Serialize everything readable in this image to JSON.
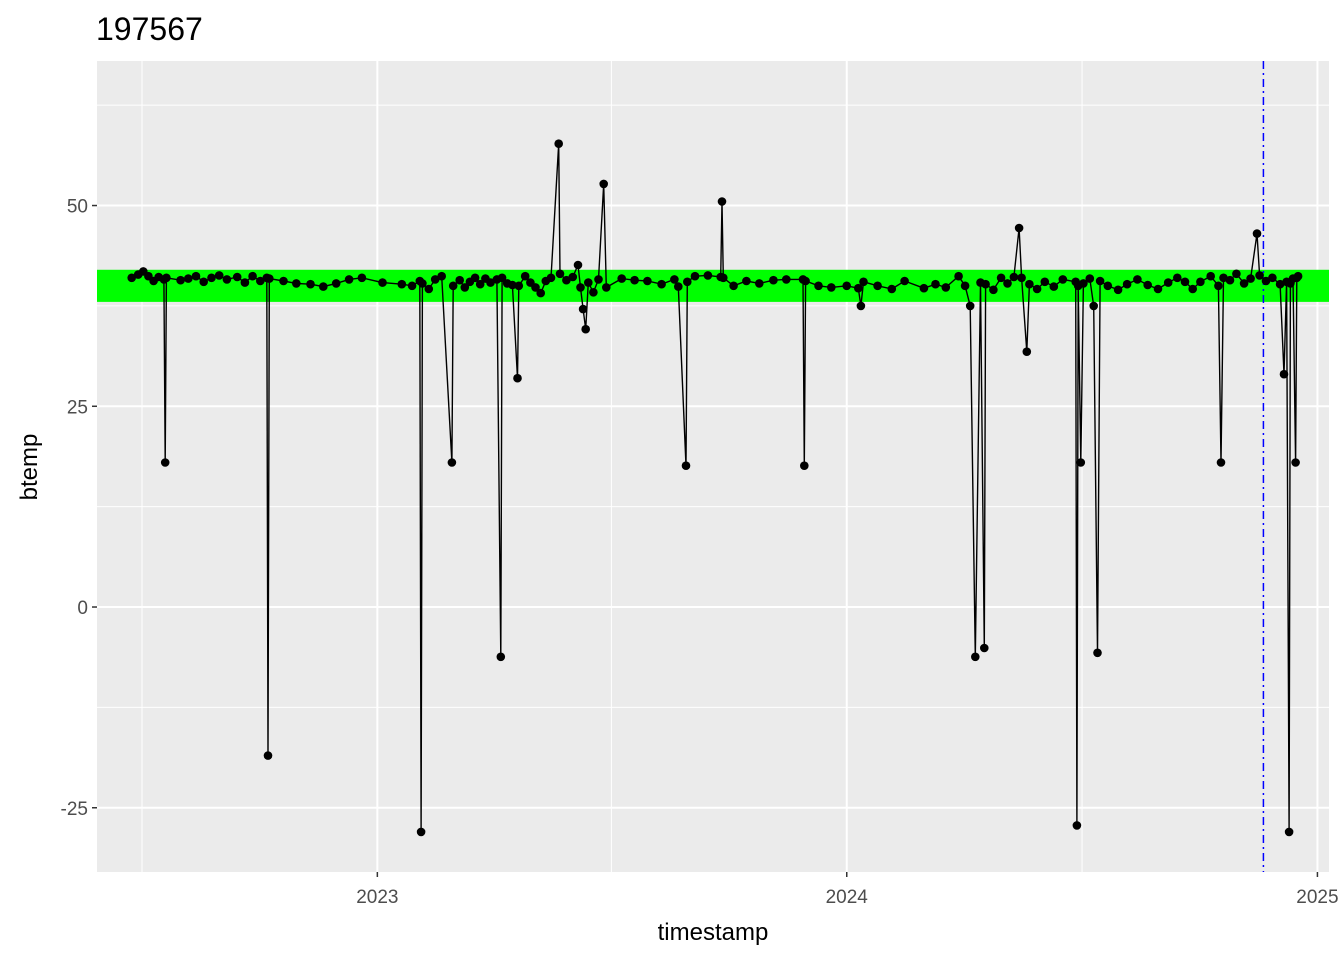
{
  "chart_data": {
    "type": "line",
    "title": "197567",
    "xlabel": "timestamp",
    "ylabel": "btemp",
    "x_tick_labels": [
      "2023",
      "2024",
      "2025"
    ],
    "y_tick_labels": [
      "-25",
      "0",
      "25",
      "50"
    ],
    "xlim": [
      "2022-05-28",
      "2025-01-10"
    ],
    "ylim": [
      -33,
      68
    ],
    "band": {
      "from": 38,
      "to": 42,
      "color": "#00ff00"
    },
    "reference_line": {
      "x": "2024-11-20",
      "color": "#0000ff",
      "style": "dot-dash"
    },
    "series": [
      {
        "color": "#000000",
        "markers": true,
        "points": [
          [
            "2022-06-24",
            41.0
          ],
          [
            "2022-06-29",
            41.4
          ],
          [
            "2022-07-03",
            41.8
          ],
          [
            "2022-07-07",
            41.2
          ],
          [
            "2022-07-11",
            40.6
          ],
          [
            "2022-07-15",
            41.1
          ],
          [
            "2022-07-19",
            40.8
          ],
          [
            "2022-07-20",
            18.0
          ],
          [
            "2022-07-21",
            41.0
          ],
          [
            "2022-08-01",
            40.7
          ],
          [
            "2022-08-07",
            40.9
          ],
          [
            "2022-08-13",
            41.2
          ],
          [
            "2022-08-19",
            40.5
          ],
          [
            "2022-08-25",
            41.0
          ],
          [
            "2022-08-31",
            41.3
          ],
          [
            "2022-09-06",
            40.8
          ],
          [
            "2022-09-14",
            41.1
          ],
          [
            "2022-09-20",
            40.4
          ],
          [
            "2022-09-26",
            41.2
          ],
          [
            "2022-10-02",
            40.6
          ],
          [
            "2022-10-07",
            41.0
          ],
          [
            "2022-10-08",
            -18.5
          ],
          [
            "2022-10-09",
            40.9
          ],
          [
            "2022-10-20",
            40.6
          ],
          [
            "2022-10-30",
            40.3
          ],
          [
            "2022-11-10",
            40.2
          ],
          [
            "2022-11-20",
            39.9
          ],
          [
            "2022-11-30",
            40.3
          ],
          [
            "2022-12-10",
            40.8
          ],
          [
            "2022-12-20",
            41.0
          ],
          [
            "2023-01-05",
            40.4
          ],
          [
            "2023-01-20",
            40.2
          ],
          [
            "2023-01-28",
            40.0
          ],
          [
            "2023-02-03",
            40.6
          ],
          [
            "2023-02-04",
            -28.0
          ],
          [
            "2023-02-05",
            40.3
          ],
          [
            "2023-02-10",
            39.6
          ],
          [
            "2023-02-15",
            40.8
          ],
          [
            "2023-02-20",
            41.2
          ],
          [
            "2023-02-28",
            18.0
          ],
          [
            "2023-03-01",
            40.0
          ],
          [
            "2023-03-06",
            40.7
          ],
          [
            "2023-03-10",
            39.8
          ],
          [
            "2023-03-14",
            40.5
          ],
          [
            "2023-03-18",
            41.0
          ],
          [
            "2023-03-22",
            40.2
          ],
          [
            "2023-03-26",
            40.9
          ],
          [
            "2023-03-30",
            40.4
          ],
          [
            "2023-04-04",
            40.8
          ],
          [
            "2023-04-07",
            -6.2
          ],
          [
            "2023-04-08",
            41.0
          ],
          [
            "2023-04-12",
            40.3
          ],
          [
            "2023-04-16",
            40.1
          ],
          [
            "2023-04-20",
            28.5
          ],
          [
            "2023-04-21",
            40.0
          ],
          [
            "2023-04-26",
            41.2
          ],
          [
            "2023-04-30",
            40.4
          ],
          [
            "2023-05-04",
            39.8
          ],
          [
            "2023-05-08",
            39.1
          ],
          [
            "2023-05-12",
            40.6
          ],
          [
            "2023-05-16",
            41.0
          ],
          [
            "2023-05-22",
            57.7
          ],
          [
            "2023-05-23",
            41.5
          ],
          [
            "2023-05-28",
            40.7
          ],
          [
            "2023-06-02",
            41.1
          ],
          [
            "2023-06-06",
            42.6
          ],
          [
            "2023-06-08",
            39.8
          ],
          [
            "2023-06-10",
            37.1
          ],
          [
            "2023-06-12",
            34.6
          ],
          [
            "2023-06-14",
            40.4
          ],
          [
            "2023-06-18",
            39.2
          ],
          [
            "2023-06-22",
            40.8
          ],
          [
            "2023-06-26",
            52.7
          ],
          [
            "2023-06-28",
            39.8
          ],
          [
            "2023-07-10",
            40.9
          ],
          [
            "2023-07-20",
            40.7
          ],
          [
            "2023-07-30",
            40.6
          ],
          [
            "2023-08-10",
            40.2
          ],
          [
            "2023-08-20",
            40.8
          ],
          [
            "2023-08-23",
            39.9
          ],
          [
            "2023-08-29",
            17.6
          ],
          [
            "2023-08-30",
            40.5
          ],
          [
            "2023-09-05",
            41.2
          ],
          [
            "2023-09-15",
            41.3
          ],
          [
            "2023-09-25",
            41.1
          ],
          [
            "2023-09-26",
            50.5
          ],
          [
            "2023-09-27",
            41.0
          ],
          [
            "2023-10-05",
            40.0
          ],
          [
            "2023-10-15",
            40.6
          ],
          [
            "2023-10-25",
            40.3
          ],
          [
            "2023-11-05",
            40.7
          ],
          [
            "2023-11-15",
            40.8
          ],
          [
            "2023-11-28",
            40.8
          ],
          [
            "2023-11-29",
            17.6
          ],
          [
            "2023-11-30",
            40.6
          ],
          [
            "2023-12-10",
            40.0
          ],
          [
            "2023-12-20",
            39.8
          ],
          [
            "2024-01-01",
            40.0
          ],
          [
            "2024-01-10",
            39.7
          ],
          [
            "2024-01-12",
            37.5
          ],
          [
            "2024-01-14",
            40.5
          ],
          [
            "2024-01-25",
            40.0
          ],
          [
            "2024-02-05",
            39.6
          ],
          [
            "2024-02-15",
            40.6
          ],
          [
            "2024-03-01",
            39.7
          ],
          [
            "2024-03-10",
            40.2
          ],
          [
            "2024-03-18",
            39.8
          ],
          [
            "2024-03-28",
            41.2
          ],
          [
            "2024-04-02",
            40.0
          ],
          [
            "2024-04-06",
            37.5
          ],
          [
            "2024-04-10",
            -6.2
          ],
          [
            "2024-04-14",
            40.4
          ],
          [
            "2024-04-17",
            -5.1
          ],
          [
            "2024-04-18",
            40.2
          ],
          [
            "2024-04-24",
            39.5
          ],
          [
            "2024-04-30",
            41.0
          ],
          [
            "2024-05-05",
            40.3
          ],
          [
            "2024-05-10",
            41.1
          ],
          [
            "2024-05-14",
            47.2
          ],
          [
            "2024-05-16",
            41.0
          ],
          [
            "2024-05-20",
            31.8
          ],
          [
            "2024-05-22",
            40.2
          ],
          [
            "2024-05-28",
            39.6
          ],
          [
            "2024-06-03",
            40.5
          ],
          [
            "2024-06-10",
            39.9
          ],
          [
            "2024-06-17",
            40.8
          ],
          [
            "2024-06-27",
            40.5
          ],
          [
            "2024-06-28",
            -27.2
          ],
          [
            "2024-06-29",
            40.0
          ],
          [
            "2024-07-01",
            18.0
          ],
          [
            "2024-07-03",
            40.3
          ],
          [
            "2024-07-08",
            40.9
          ],
          [
            "2024-07-11",
            37.5
          ],
          [
            "2024-07-14",
            -5.7
          ],
          [
            "2024-07-16",
            40.6
          ],
          [
            "2024-07-22",
            40.0
          ],
          [
            "2024-07-30",
            39.5
          ],
          [
            "2024-08-06",
            40.2
          ],
          [
            "2024-08-14",
            40.8
          ],
          [
            "2024-08-22",
            40.1
          ],
          [
            "2024-08-30",
            39.6
          ],
          [
            "2024-09-07",
            40.4
          ],
          [
            "2024-09-14",
            41.0
          ],
          [
            "2024-09-20",
            40.5
          ],
          [
            "2024-09-26",
            39.6
          ],
          [
            "2024-10-02",
            40.5
          ],
          [
            "2024-10-10",
            41.2
          ],
          [
            "2024-10-16",
            40.0
          ],
          [
            "2024-10-18",
            18.0
          ],
          [
            "2024-10-20",
            41.0
          ],
          [
            "2024-10-25",
            40.7
          ],
          [
            "2024-10-30",
            41.5
          ],
          [
            "2024-11-05",
            40.3
          ],
          [
            "2024-11-10",
            40.9
          ],
          [
            "2024-11-15",
            46.5
          ],
          [
            "2024-11-17",
            41.3
          ],
          [
            "2024-11-22",
            40.6
          ],
          [
            "2024-11-27",
            41.0
          ],
          [
            "2024-12-03",
            40.2
          ],
          [
            "2024-12-06",
            29.0
          ],
          [
            "2024-12-08",
            40.5
          ],
          [
            "2024-12-10",
            -28.0
          ],
          [
            "2024-12-11",
            40.3
          ],
          [
            "2024-12-13",
            40.9
          ],
          [
            "2024-12-15",
            18.0
          ],
          [
            "2024-12-16",
            41.0
          ],
          [
            "2024-12-17",
            41.2
          ]
        ]
      }
    ]
  }
}
